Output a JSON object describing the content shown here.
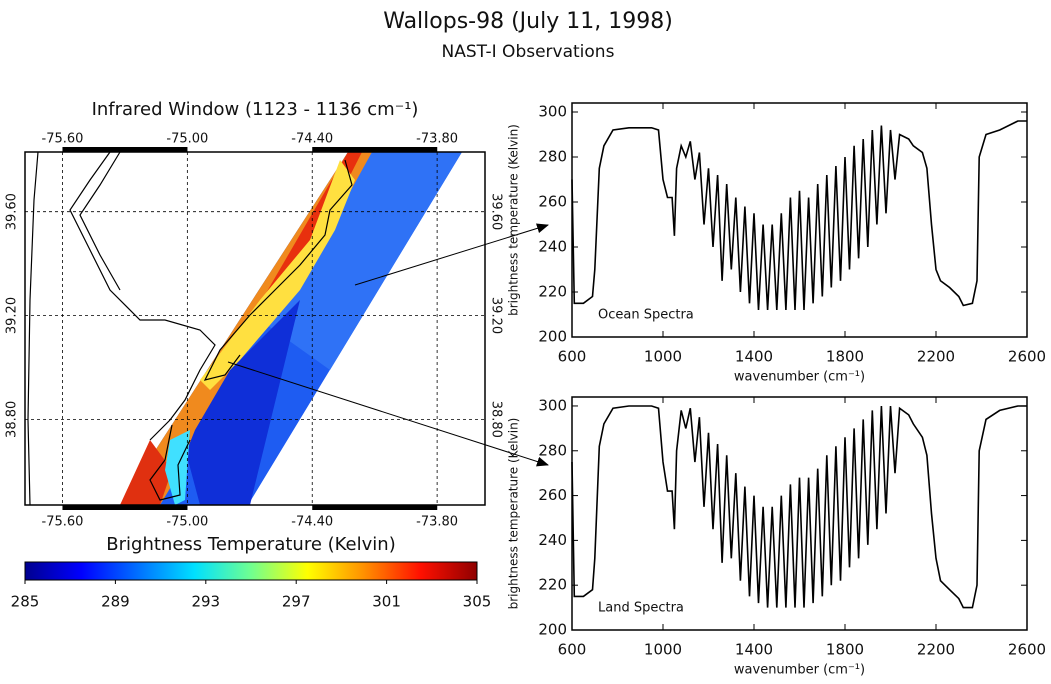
{
  "header": {
    "title": "Wallops-98 (July 11, 1998)",
    "subtitle": "NAST-I Observations"
  },
  "chart_data": [
    {
      "type": "map",
      "title": "Infrared Window (1123 - 1136 cm⁻¹)",
      "xlim": [
        -75.78,
        -73.57
      ],
      "xticks": [
        {
          "value": -75.6,
          "label": "-75.60"
        },
        {
          "value": -75.0,
          "label": "-75.00"
        },
        {
          "value": -74.4,
          "label": "-74.40"
        },
        {
          "value": -73.8,
          "label": "-73.80"
        }
      ],
      "ylim": [
        38.47,
        39.83
      ],
      "yticks": [
        {
          "value": 39.6,
          "label": "39.60"
        },
        {
          "value": 39.2,
          "label": "39.20"
        },
        {
          "value": 38.8,
          "label": "38.80"
        }
      ],
      "grid": true
    },
    {
      "type": "colorbar",
      "title": "Brightness Temperature (Kelvin)",
      "xlim": [
        285,
        305
      ],
      "xticks": [
        285,
        289,
        293,
        297,
        301,
        305
      ],
      "colors": [
        "#00008f",
        "#0000ff",
        "#0070ff",
        "#00e0ff",
        "#70ff90",
        "#ffff00",
        "#ff9000",
        "#ff1000",
        "#8f0000"
      ]
    },
    {
      "type": "line",
      "annotation": "Ocean Spectra",
      "x_label": "wavenumber (cm⁻¹)",
      "y_label": "brightness temperature (Kelvin)",
      "xlim": [
        600,
        2600
      ],
      "xticks": [
        600,
        1000,
        1400,
        1800,
        2200,
        2600
      ],
      "ylim": [
        200,
        304
      ],
      "yticks": [
        200,
        220,
        240,
        260,
        280,
        300
      ],
      "x": [
        600,
        610,
        650,
        690,
        700,
        720,
        740,
        780,
        850,
        950,
        980,
        1000,
        1020,
        1040,
        1050,
        1060,
        1080,
        1100,
        1120,
        1140,
        1160,
        1180,
        1200,
        1220,
        1240,
        1260,
        1280,
        1300,
        1320,
        1340,
        1360,
        1380,
        1400,
        1420,
        1440,
        1460,
        1480,
        1500,
        1520,
        1540,
        1560,
        1580,
        1600,
        1620,
        1640,
        1660,
        1680,
        1700,
        1720,
        1740,
        1760,
        1780,
        1800,
        1820,
        1840,
        1860,
        1880,
        1900,
        1920,
        1940,
        1960,
        1980,
        2000,
        2020,
        2040,
        2080,
        2100,
        2140,
        2160,
        2180,
        2200,
        2220,
        2260,
        2300,
        2320,
        2360,
        2380,
        2390,
        2420,
        2480,
        2560,
        2600
      ],
      "series": [
        {
          "name": "Ocean",
          "color": "#000000",
          "values": [
            270,
            215,
            215,
            218,
            230,
            275,
            285,
            292,
            293,
            293,
            292,
            270,
            262,
            262,
            245,
            275,
            285,
            280,
            287,
            270,
            282,
            250,
            275,
            240,
            272,
            225,
            268,
            230,
            262,
            220,
            258,
            215,
            255,
            212,
            250,
            212,
            250,
            212,
            255,
            212,
            262,
            212,
            265,
            212,
            262,
            215,
            268,
            218,
            272,
            222,
            276,
            225,
            280,
            230,
            285,
            235,
            288,
            240,
            292,
            250,
            294,
            255,
            292,
            270,
            290,
            288,
            285,
            282,
            275,
            250,
            230,
            225,
            222,
            218,
            214,
            215,
            225,
            280,
            290,
            292,
            296,
            296
          ]
        }
      ]
    },
    {
      "type": "line",
      "annotation": "Land Spectra",
      "x_label": "wavenumber (cm⁻¹)",
      "y_label": "brightness temperature (Kelvin)",
      "xlim": [
        600,
        2600
      ],
      "xticks": [
        600,
        1000,
        1400,
        1800,
        2200,
        2600
      ],
      "ylim": [
        200,
        304
      ],
      "yticks": [
        200,
        220,
        240,
        260,
        280,
        300
      ],
      "x": [
        600,
        610,
        650,
        690,
        700,
        720,
        740,
        780,
        850,
        950,
        980,
        1000,
        1020,
        1040,
        1050,
        1060,
        1080,
        1100,
        1120,
        1140,
        1160,
        1180,
        1200,
        1220,
        1240,
        1260,
        1280,
        1300,
        1320,
        1340,
        1360,
        1380,
        1400,
        1420,
        1440,
        1460,
        1480,
        1500,
        1520,
        1540,
        1560,
        1580,
        1600,
        1620,
        1640,
        1660,
        1680,
        1700,
        1720,
        1740,
        1760,
        1780,
        1800,
        1820,
        1840,
        1860,
        1880,
        1900,
        1920,
        1940,
        1960,
        1980,
        2000,
        2020,
        2040,
        2080,
        2100,
        2140,
        2160,
        2180,
        2200,
        2220,
        2260,
        2300,
        2320,
        2360,
        2380,
        2390,
        2420,
        2480,
        2560,
        2600
      ],
      "series": [
        {
          "name": "Land",
          "color": "#000000",
          "values": [
            275,
            215,
            215,
            218,
            232,
            282,
            292,
            299,
            300,
            300,
            299,
            275,
            262,
            262,
            245,
            280,
            298,
            290,
            299,
            275,
            295,
            255,
            288,
            245,
            283,
            230,
            278,
            232,
            270,
            222,
            264,
            215,
            260,
            212,
            255,
            210,
            255,
            210,
            260,
            210,
            265,
            210,
            268,
            210,
            268,
            212,
            272,
            215,
            278,
            220,
            282,
            222,
            286,
            228,
            290,
            232,
            294,
            238,
            298,
            245,
            300,
            252,
            300,
            270,
            299,
            296,
            292,
            286,
            278,
            252,
            232,
            222,
            218,
            214,
            210,
            210,
            220,
            280,
            294,
            298,
            300,
            300
          ]
        }
      ]
    }
  ]
}
